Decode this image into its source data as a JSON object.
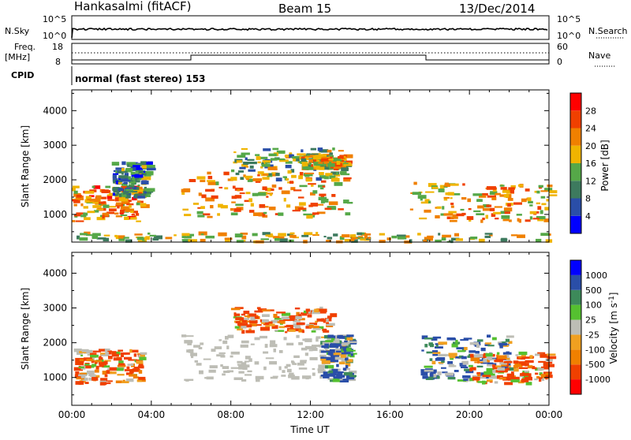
{
  "header": {
    "station": "Hankasalmi (fitACF)",
    "beam": "Beam 15",
    "date": "13/Dec/2014"
  },
  "sky_panel": {
    "left_label": "N.Sky",
    "left_top_tick": "10^5",
    "left_bottom_tick": "10^0",
    "right_top_tick": "10^5",
    "right_bottom_tick": "10^0",
    "right_label": "N.Search"
  },
  "freq_panel": {
    "left_label_1": "Freq.",
    "left_label_2": "[MHz]",
    "left_top_tick": "18",
    "left_bottom_tick": "8",
    "right_top_tick": "60",
    "right_bottom_tick": "0",
    "right_label": "Nave",
    "cpid_label": "CPID",
    "mode_text": "normal (fast stereo) 153"
  },
  "x_axis": {
    "label": "Time UT",
    "ticks": [
      "00:00",
      "04:00",
      "08:00",
      "12:00",
      "16:00",
      "20:00",
      "00:00"
    ]
  },
  "colors": {
    "power": [
      "#0000ff",
      "#2a4ea8",
      "#3d7a5e",
      "#55a848",
      "#f0b400",
      "#f08000",
      "#f04000",
      "#ff0000"
    ],
    "velocity": [
      "#ff0000",
      "#f04000",
      "#f08000",
      "#f0a020",
      "#bdbdb5",
      "#55c030",
      "#3d8a5a",
      "#2a4ea8",
      "#0000ff"
    ]
  },
  "chart_data": [
    {
      "type": "heatmap",
      "panel": "power",
      "ylabel": "Slant Range [km]",
      "yticks": [
        1000,
        2000,
        3000,
        4000
      ],
      "ylim": [
        200,
        4600
      ],
      "xlim": [
        0,
        24
      ],
      "colorbar_label": "Power [dB]",
      "colorbar_ticks": [
        4,
        8,
        12,
        16,
        20,
        24,
        28
      ],
      "colorbar_range": [
        0,
        32
      ],
      "regions": [
        {
          "t": [
            0.0,
            3.5
          ],
          "r": [
            800,
            1800
          ],
          "v": 22
        },
        {
          "t": [
            2.0,
            3.8
          ],
          "r": [
            1500,
            2500
          ],
          "v": 10
        },
        {
          "t": [
            5.5,
            14.0
          ],
          "r": [
            900,
            2200
          ],
          "v": 20
        },
        {
          "t": [
            8.0,
            13.5
          ],
          "r": [
            2000,
            2900
          ],
          "v": 14
        },
        {
          "t": [
            11.5,
            13.8
          ],
          "r": [
            2300,
            2700
          ],
          "v": 18
        },
        {
          "t": [
            17.0,
            24.0
          ],
          "r": [
            800,
            1900
          ],
          "v": 20
        },
        {
          "t": [
            0.0,
            24.0
          ],
          "r": [
            200,
            450
          ],
          "v": 16
        }
      ]
    },
    {
      "type": "heatmap",
      "panel": "velocity",
      "ylabel": "Slant Range [km]",
      "yticks": [
        1000,
        2000,
        3000,
        4000
      ],
      "ylim": [
        200,
        4600
      ],
      "xlim": [
        0,
        24
      ],
      "colorbar_label": "Velocity [m s^-1]",
      "colorbar_ticks": [
        "1000",
        "500",
        "100",
        "25",
        "-25",
        "-100",
        "-500",
        "-1000"
      ],
      "regions": [
        {
          "t": [
            0.0,
            3.5
          ],
          "r": [
            800,
            1800
          ],
          "v": -100
        },
        {
          "t": [
            5.5,
            14.0
          ],
          "r": [
            900,
            2200
          ],
          "v": 0
        },
        {
          "t": [
            8.0,
            13.0
          ],
          "r": [
            2300,
            3000
          ],
          "v": -100
        },
        {
          "t": [
            12.5,
            14.0
          ],
          "r": [
            900,
            2200
          ],
          "v": 100
        },
        {
          "t": [
            17.5,
            22.0
          ],
          "r": [
            900,
            2200
          ],
          "v": 100
        },
        {
          "t": [
            20.0,
            24.0
          ],
          "r": [
            800,
            1700
          ],
          "v": -100
        }
      ]
    }
  ]
}
